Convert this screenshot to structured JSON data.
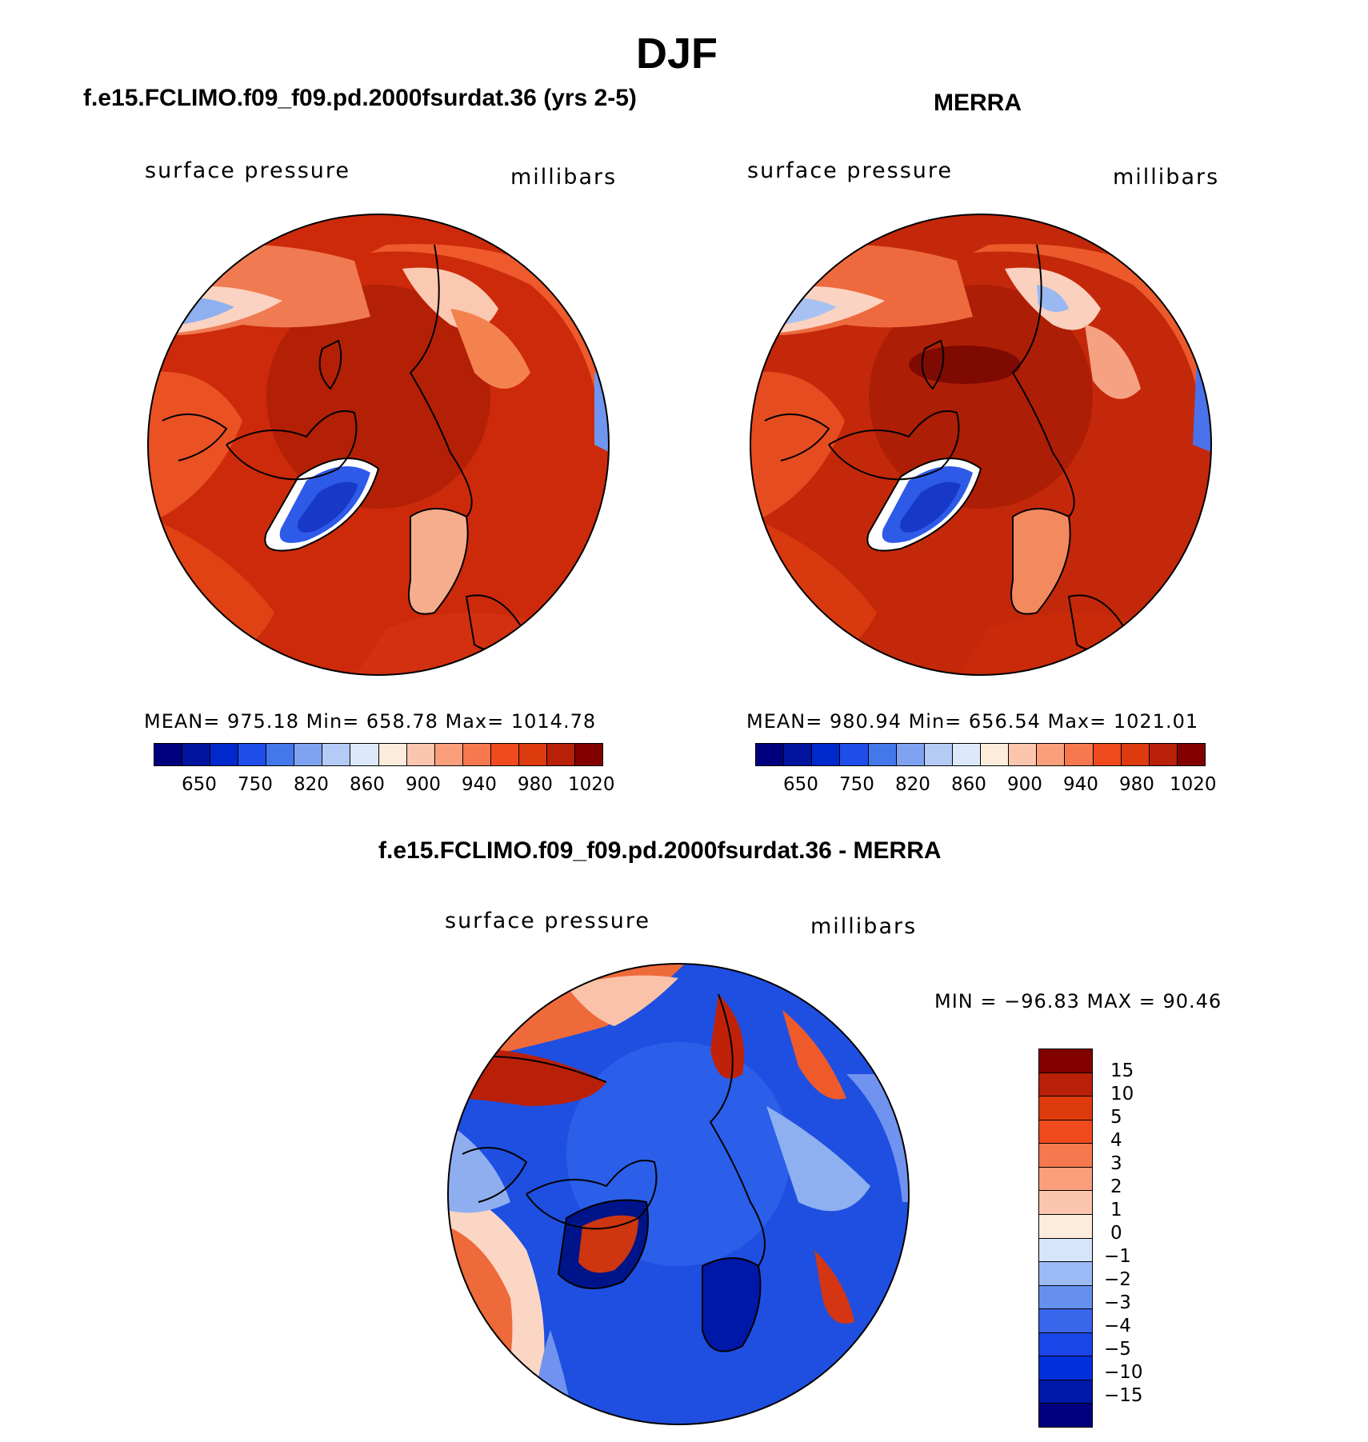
{
  "figure": {
    "title": "DJF"
  },
  "panels": [
    {
      "title": "f.e15.FCLIMO.f09_f09.pd.2000fsurdat.36 (yrs 2-5)",
      "left_label": "surface pressure",
      "right_label": "millibars",
      "stats": "MEAN= 975.18   Min= 658.78   Max= 1014.78"
    },
    {
      "title": "MERRA",
      "left_label": "surface pressure",
      "right_label": "millibars",
      "stats": "MEAN= 980.94   Min= 656.54   Max= 1021.01"
    },
    {
      "title": "f.e15.FCLIMO.f09_f09.pd.2000fsurdat.36 - MERRA",
      "left_label": "surface pressure",
      "right_label": "millibars",
      "stats": "MIN = −96.83 MAX =   90.46"
    }
  ],
  "colorbar_abs": {
    "colors": [
      "#00007f",
      "#0014a0",
      "#0028cc",
      "#1e4dea",
      "#4477ea",
      "#7fa3f0",
      "#b3cbf5",
      "#dde9fa",
      "#fdebdc",
      "#fcc5ae",
      "#fa9f7c",
      "#f5784e",
      "#ef4b1e",
      "#dd3a0d",
      "#b92008",
      "#820000"
    ],
    "tick_labels": [
      "650",
      "750",
      "820",
      "860",
      "900",
      "940",
      "980",
      "1020"
    ]
  },
  "colorbar_diff": {
    "colors": [
      "#00007f",
      "#0018a8",
      "#0030dc",
      "#1a45e8",
      "#3a66ec",
      "#6690f0",
      "#9cbaf5",
      "#d6e5fb",
      "#fdebdc",
      "#fcc5ae",
      "#fa9f7c",
      "#f5784e",
      "#ef4b1e",
      "#dd3a0d",
      "#b92008",
      "#820000"
    ],
    "tick_labels": [
      "15",
      "10",
      "5",
      "4",
      "3",
      "2",
      "1",
      "0",
      "−1",
      "−2",
      "−3",
      "−4",
      "−5",
      "−10",
      "−15"
    ]
  },
  "colors": {
    "ocean_abs": "#cc2a0a",
    "ocean_diff": "#1f4fe0"
  }
}
